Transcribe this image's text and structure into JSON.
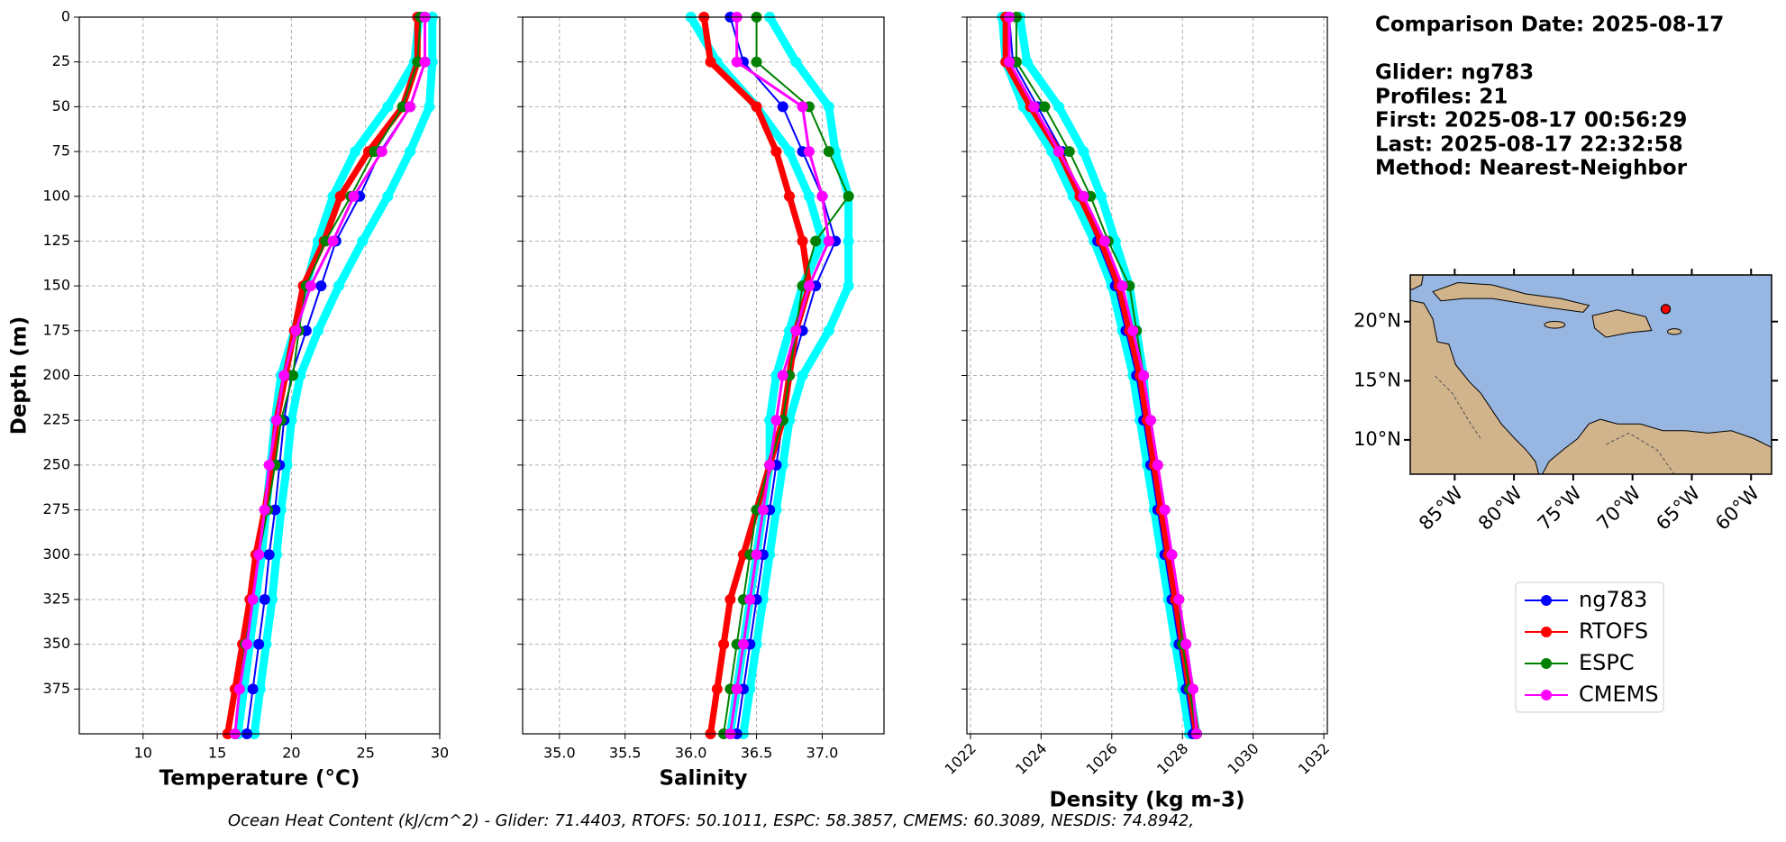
{
  "chart_data": [
    {
      "type": "line",
      "xlabel": "Temperature (°C)",
      "ylabel": "Depth (m)",
      "xlim": [
        5.7,
        30
      ],
      "xticks": [
        10,
        15,
        20,
        25,
        30
      ],
      "ylim": [
        0,
        400
      ],
      "y_inverted": true,
      "yticks": [
        0,
        25,
        50,
        75,
        100,
        125,
        150,
        175,
        200,
        225,
        250,
        275,
        300,
        325,
        350,
        375
      ],
      "show_ytick_labels": true,
      "grid": true,
      "y": [
        0,
        25,
        50,
        75,
        100,
        125,
        150,
        175,
        200,
        225,
        250,
        275,
        300,
        325,
        350,
        375,
        400
      ],
      "series": [
        {
          "color": "#00ffff",
          "linewidth": 9,
          "values": [
            28.6,
            28.3,
            26.5,
            24.3,
            22.8,
            21.8,
            21,
            20.2,
            19.3,
            18.9,
            18.6,
            18.3,
            18,
            17.6,
            17.2,
            16.8,
            16.4
          ]
        },
        {
          "color": "#00ffff",
          "linewidth": 9,
          "values": [
            29.5,
            29.5,
            29.3,
            28,
            26.5,
            24.8,
            23.2,
            21.8,
            20.6,
            20,
            19.7,
            19.3,
            19,
            18.7,
            18.3,
            17.9,
            17.5
          ]
        },
        {
          "name": "ng783",
          "color": "#0000ff",
          "linewidth": 2,
          "values": [
            29,
            29,
            28,
            26,
            24.6,
            23,
            22,
            21,
            20,
            19.5,
            19.2,
            18.9,
            18.5,
            18.2,
            17.8,
            17.4,
            17
          ]
        },
        {
          "name": "RTOFS",
          "color": "#ff0000",
          "linewidth": 7,
          "values": [
            28.5,
            28.5,
            27.5,
            25.2,
            23.3,
            22.2,
            20.8,
            20.2,
            19.6,
            19,
            18.7,
            18.2,
            17.6,
            17.2,
            16.7,
            16.2,
            15.7
          ]
        },
        {
          "name": "ESPC",
          "color": "#008000",
          "linewidth": 2,
          "values": [
            28.7,
            28.5,
            27.5,
            25.6,
            24,
            22.3,
            21,
            20.5,
            20.1,
            19.3,
            18.9,
            18.4,
            17.8,
            17.4,
            16.9,
            16.5,
            16.2
          ]
        },
        {
          "name": "CMEMS",
          "color": "#ff00ff",
          "linewidth": 3,
          "values": [
            29,
            29,
            28,
            26.1,
            24.2,
            22.8,
            21.3,
            20.3,
            19.5,
            19,
            18.5,
            18.2,
            17.8,
            17.4,
            17,
            16.5,
            16.2
          ]
        }
      ]
    },
    {
      "type": "line",
      "xlabel": "Salinity",
      "xlim": [
        34.72,
        37.47
      ],
      "xticks": [
        {
          "value": 35,
          "label": "35.0"
        },
        35.5,
        {
          "value": 36,
          "label": "36.0"
        },
        36.5,
        {
          "value": 37,
          "label": "37.0"
        }
      ],
      "ylim": [
        0,
        400
      ],
      "y_inverted": true,
      "yticks": [
        0,
        25,
        50,
        75,
        100,
        125,
        150,
        175,
        200,
        225,
        250,
        275,
        300,
        325,
        350,
        375
      ],
      "show_ytick_labels": false,
      "grid": true,
      "y": [
        0,
        25,
        50,
        75,
        100,
        125,
        150,
        175,
        200,
        225,
        250,
        275,
        300,
        325,
        350,
        375,
        400
      ],
      "series": [
        {
          "color": "#00ffff",
          "linewidth": 9,
          "values": [
            36,
            36.2,
            36.5,
            36.75,
            36.9,
            37,
            36.85,
            36.75,
            36.65,
            36.6,
            36.6,
            36.55,
            36.5,
            36.45,
            36.4,
            36.35,
            36.3
          ]
        },
        {
          "color": "#00ffff",
          "linewidth": 9,
          "values": [
            36.6,
            36.8,
            37.05,
            37.1,
            37.2,
            37.2,
            37.2,
            37.05,
            36.85,
            36.75,
            36.7,
            36.65,
            36.6,
            36.55,
            36.5,
            36.45,
            36.4
          ]
        },
        {
          "name": "ng783",
          "color": "#0000ff",
          "linewidth": 2,
          "values": [
            36.3,
            36.4,
            36.7,
            36.85,
            37,
            37.1,
            36.95,
            36.85,
            36.75,
            36.7,
            36.65,
            36.6,
            36.55,
            36.5,
            36.45,
            36.4,
            36.35
          ]
        },
        {
          "name": "RTOFS",
          "color": "#ff0000",
          "linewidth": 7,
          "values": [
            36.1,
            36.15,
            36.5,
            36.65,
            36.75,
            36.85,
            36.9,
            36.8,
            36.75,
            36.7,
            36.6,
            36.5,
            36.4,
            36.3,
            36.25,
            36.2,
            36.15
          ]
        },
        {
          "name": "ESPC",
          "color": "#008000",
          "linewidth": 2,
          "values": [
            36.5,
            36.5,
            36.9,
            37.05,
            37.2,
            36.95,
            36.85,
            36.8,
            36.75,
            36.7,
            36.6,
            36.5,
            36.45,
            36.4,
            36.35,
            36.3,
            36.25
          ]
        },
        {
          "name": "CMEMS",
          "color": "#ff00ff",
          "linewidth": 3,
          "values": [
            36.35,
            36.35,
            36.85,
            36.9,
            37,
            37.05,
            36.9,
            36.8,
            36.7,
            36.65,
            36.6,
            36.55,
            36.5,
            36.45,
            36.4,
            36.35,
            36.3
          ]
        }
      ]
    },
    {
      "type": "line",
      "xlabel": "Density (kg m-3)",
      "xlim": [
        1021.9,
        1032.1
      ],
      "xticks": [
        1022,
        1024,
        1026,
        1028,
        1030,
        1032
      ],
      "xtick_rotation": 45,
      "ylim": [
        0,
        400
      ],
      "y_inverted": true,
      "yticks": [
        0,
        25,
        50,
        75,
        100,
        125,
        150,
        175,
        200,
        225,
        250,
        275,
        300,
        325,
        350,
        375
      ],
      "show_ytick_labels": false,
      "grid": true,
      "y": [
        0,
        25,
        50,
        75,
        100,
        125,
        150,
        175,
        200,
        225,
        250,
        275,
        300,
        325,
        350,
        375,
        400
      ],
      "series": [
        {
          "color": "#00ffff",
          "linewidth": 9,
          "values": [
            1022.9,
            1023,
            1023.5,
            1024.3,
            1024.9,
            1025.5,
            1026,
            1026.3,
            1026.6,
            1026.8,
            1027,
            1027.2,
            1027.4,
            1027.6,
            1027.8,
            1028,
            1028.2
          ]
        },
        {
          "color": "#00ffff",
          "linewidth": 9,
          "values": [
            1023.4,
            1023.6,
            1024.5,
            1025.2,
            1025.7,
            1026.1,
            1026.5,
            1026.7,
            1026.9,
            1027,
            1027.2,
            1027.4,
            1027.6,
            1027.8,
            1028,
            1028.2,
            1028.4
          ]
        },
        {
          "name": "ng783",
          "color": "#0000ff",
          "linewidth": 2,
          "values": [
            1023.1,
            1023.2,
            1023.9,
            1024.6,
            1025.1,
            1025.6,
            1026.1,
            1026.4,
            1026.7,
            1026.9,
            1027.1,
            1027.3,
            1027.5,
            1027.7,
            1027.9,
            1028.1,
            1028.3
          ]
        },
        {
          "name": "RTOFS",
          "color": "#ff0000",
          "linewidth": 7,
          "values": [
            1023,
            1023,
            1023.7,
            1024.5,
            1025.1,
            1025.7,
            1026.2,
            1026.5,
            1026.8,
            1027,
            1027.2,
            1027.4,
            1027.6,
            1027.8,
            1028,
            1028.2,
            1028.4
          ]
        },
        {
          "name": "ESPC",
          "color": "#008000",
          "linewidth": 2,
          "values": [
            1023.3,
            1023.3,
            1024.1,
            1024.8,
            1025.4,
            1025.9,
            1026.5,
            1026.7,
            1026.9,
            1027.1,
            1027.3,
            1027.5,
            1027.7,
            1027.9,
            1028,
            1028.2,
            1028.4
          ]
        },
        {
          "name": "CMEMS",
          "color": "#ff00ff",
          "linewidth": 3,
          "values": [
            1023.1,
            1023.1,
            1023.8,
            1024.5,
            1025.2,
            1025.8,
            1026.3,
            1026.6,
            1026.9,
            1027.1,
            1027.3,
            1027.5,
            1027.7,
            1027.9,
            1028.1,
            1028.3,
            1028.4
          ]
        }
      ]
    },
    {
      "type": "map",
      "xlim": [
        -88.75,
        -58.27
      ],
      "xticks": [
        {
          "value": -85,
          "label": "85°W"
        },
        {
          "value": -80,
          "label": "80°W"
        },
        {
          "value": -75,
          "label": "75°W"
        },
        {
          "value": -70,
          "label": "70°W"
        },
        {
          "value": -65,
          "label": "65°W"
        },
        {
          "value": -60,
          "label": "60°W"
        }
      ],
      "ylim": [
        7.1,
        23.94
      ],
      "yticks": [
        {
          "value": 10,
          "label": "10°N"
        },
        {
          "value": 15,
          "label": "15°N"
        },
        {
          "value": 20,
          "label": "20°N"
        }
      ],
      "x": [
        -67.2
      ],
      "values": [
        21.06
      ],
      "color": "#ff0000"
    }
  ],
  "info": {
    "title": "Comparison Date: 2025-08-17",
    "lines": [
      "Glider: ng783",
      "Profiles: 21",
      "First: 2025-08-17 00:56:29",
      "Last: 2025-08-17 22:32:58",
      "Method: Nearest-Neighbor"
    ]
  },
  "footer": "Ocean Heat Content (kJ/cm^2) - Glider: 71.4403,  RTOFS: 50.1011,  ESPC: 58.3857,  CMEMS: 60.3089,  NESDIS: 74.8942,"
}
